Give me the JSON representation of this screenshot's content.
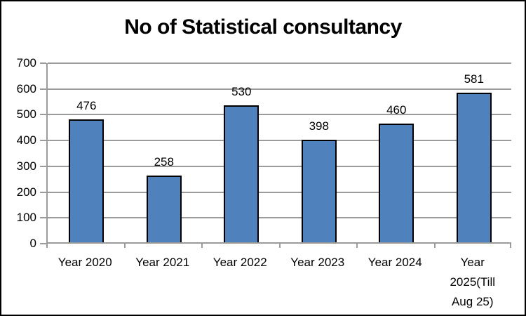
{
  "title": "No of Statistical consultancy",
  "chart_data": {
    "type": "bar",
    "title": "No of Statistical consultancy",
    "categories": [
      "Year 2020",
      "Year 2021",
      "Year 2022",
      "Year 2023",
      "Year 2024",
      "Year 2025(Till Aug 25)"
    ],
    "values": [
      476,
      258,
      530,
      398,
      460,
      581
    ],
    "data_labels": [
      "476",
      "258",
      "530",
      "398",
      "460",
      "581"
    ],
    "xlabel": "",
    "ylabel": "",
    "ylim": [
      0,
      700
    ],
    "yticks": [
      0,
      100,
      200,
      300,
      400,
      500,
      600,
      700
    ],
    "grid": true,
    "legend": false,
    "colors": {
      "bar_fill": "#4F81BD",
      "bar_border": "#000000",
      "gridline": "#9B9B9B",
      "axis": "#9B9B9B",
      "text": "#000000",
      "background": "#FFFFFF",
      "outer_border": "#000000"
    }
  }
}
